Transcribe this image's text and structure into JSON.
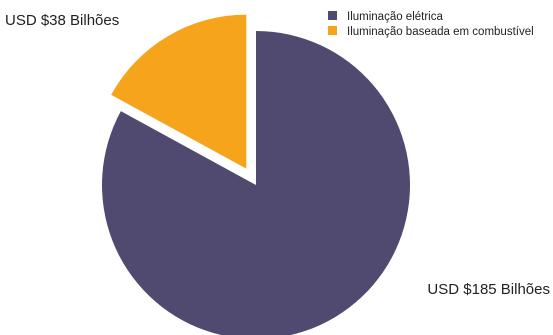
{
  "chart_data": {
    "type": "pie",
    "title": "",
    "legend_position": "top-right",
    "slices": [
      {
        "name": "Iluminação elétrica",
        "value": 185,
        "label": "USD $185 Bilhões",
        "color": "#504a70"
      },
      {
        "name": "Iluminação baseada em combustível",
        "value": 38,
        "label": "USD $38 Bilhões",
        "color": "#f5a41c"
      }
    ]
  }
}
